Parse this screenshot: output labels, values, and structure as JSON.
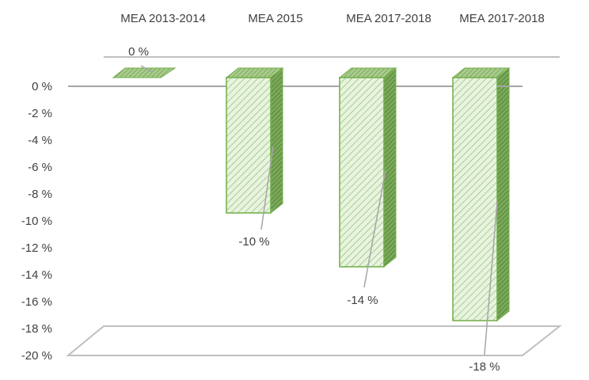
{
  "chart_data": {
    "type": "bar",
    "categories": [
      "MEA  2013-2014",
      "MEA 2015",
      "MEA 2017-2018",
      "MEA 2017-2018"
    ],
    "series": [
      {
        "values": [
          0,
          -10,
          -14,
          -18
        ]
      }
    ],
    "data_labels": [
      "0 %",
      "-10 %",
      "-14 %",
      "-18 %"
    ],
    "y_ticks": [
      "0 %",
      "-2 %",
      "-4 %",
      "-6 %",
      "-8 %",
      "-10 %",
      "-12 %",
      "-14 %",
      "-16 %",
      "-18 %",
      "-20 %"
    ],
    "ylim": [
      -20,
      0
    ],
    "category_labels_position": "top",
    "grid": false,
    "legend": "none",
    "bar_color": "#e2efd9",
    "bar_border_color": "#70ad47",
    "pattern": "diagonal-hatch",
    "three_d": true
  }
}
